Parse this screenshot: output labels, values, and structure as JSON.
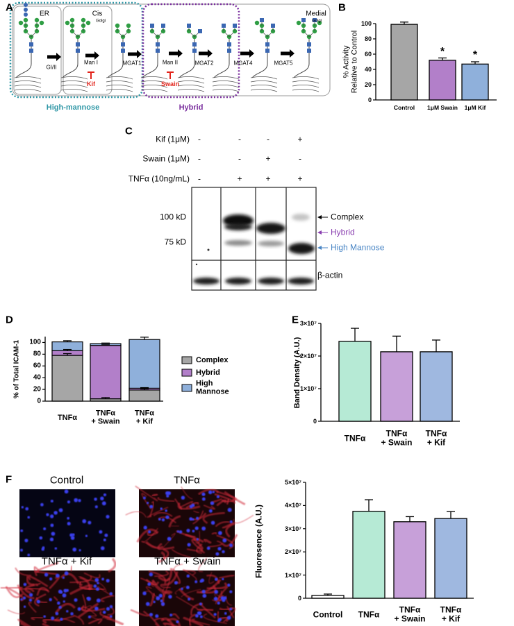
{
  "panel_labels": [
    "A",
    "B",
    "C",
    "D",
    "E",
    "F"
  ],
  "pathway": {
    "compartments": [
      "ER",
      "Cis",
      "Golgi",
      "Medial",
      "Golgi"
    ],
    "enzymes": [
      "GI/II",
      "Man I",
      "MGAT1",
      "Man II",
      "MGAT2",
      "MGAT4",
      "MGAT5"
    ],
    "inhibitors": [
      "Kif",
      "Swain"
    ],
    "groups": [
      "High-mannose",
      "Hybrid"
    ]
  },
  "blot": {
    "treatments": [
      {
        "label": "Kif (1μM)",
        "signs": [
          "-",
          "-",
          "-",
          "+"
        ]
      },
      {
        "label": "Swain (1μM)",
        "signs": [
          "-",
          "-",
          "+",
          "-"
        ]
      },
      {
        "label": "TNFα (10ng/mL)",
        "signs": [
          "-",
          "+",
          "+",
          "+"
        ]
      }
    ],
    "markers": [
      "100 kD",
      "75 kD"
    ],
    "bands": [
      "Complex",
      "Hybrid",
      "High Mannose"
    ],
    "loading_control": "β-actin"
  },
  "micrographs": [
    "Control",
    "TNFα",
    "TNFα + Kif",
    "TNFα + Swain"
  ],
  "chart_data": [
    {
      "type": "bar",
      "ylabel": "% Activity\nRelative to Control",
      "categories": [
        "Control",
        "1μM Swain",
        "1μM Kif"
      ],
      "values": [
        99,
        52,
        47
      ],
      "errors": [
        3,
        3,
        3
      ],
      "colors": [
        "#a6a6a6",
        "#b27fc9",
        "#8fb0db"
      ],
      "significance": [
        null,
        "*",
        "*"
      ],
      "ylim": [
        0,
        100
      ],
      "yticks": [
        0,
        20,
        40,
        60,
        80,
        100
      ]
    },
    {
      "type": "stacked_bar",
      "ylabel": "% of Total ICAM-1",
      "categories": [
        "TNFα",
        "TNFα\n+ Swain",
        "TNFα\n+ Kif"
      ],
      "series": [
        {
          "name": "Complex",
          "color": "#a6a6a6",
          "values": [
            78,
            4,
            19
          ],
          "errors": [
            3,
            2,
            2
          ]
        },
        {
          "name": "Hybrid",
          "color": "#b27fc9",
          "values": [
            8,
            91,
            3
          ],
          "errors": [
            2,
            1,
            1
          ]
        },
        {
          "name": "High\nMannose",
          "color": "#8fb0db",
          "values": [
            15,
            3,
            83
          ],
          "errors": [
            2,
            1,
            4
          ]
        }
      ],
      "ylim": [
        0,
        110
      ],
      "yticks": [
        0,
        20,
        40,
        60,
        80,
        100
      ],
      "legend": "right"
    },
    {
      "type": "bar",
      "ylabel": "Band Density (A.U.)",
      "categories": [
        "TNFα",
        "TNFα\n+ Swain",
        "TNFα\n+ Kif"
      ],
      "values": [
        24500000,
        21300000,
        21300000
      ],
      "errors": [
        4000000,
        4800000,
        3600000
      ],
      "colors": [
        "#b6ead5",
        "#c7a0d9",
        "#9fb8e0"
      ],
      "ylim": [
        0,
        30000000
      ],
      "yticks": [
        0,
        {
          "value": 10000000,
          "label": "1×10⁷"
        },
        {
          "value": 20000000,
          "label": "2×10⁷"
        },
        {
          "value": 30000000,
          "label": "3×10⁷"
        }
      ]
    },
    {
      "type": "bar",
      "ylabel": "Fluoresence (A.U.)",
      "categories": [
        "Control",
        "TNFα",
        "TNFα\n+ Swain",
        "TNFα\n+ Kif"
      ],
      "values": [
        1200000,
        37500000,
        33000000,
        34400000
      ],
      "errors": [
        600000,
        5000000,
        2200000,
        3000000
      ],
      "colors": [
        "#ffffff",
        "#b6ead5",
        "#c7a0d9",
        "#9fb8e0"
      ],
      "ylim": [
        0,
        50000000
      ],
      "yticks": [
        0,
        {
          "value": 10000000,
          "label": "1×10⁷"
        },
        {
          "value": 20000000,
          "label": "2×10⁷"
        },
        {
          "value": 30000000,
          "label": "3×10⁷"
        },
        {
          "value": 40000000,
          "label": "4×10⁷"
        },
        {
          "value": 50000000,
          "label": "5×10⁷"
        }
      ]
    }
  ]
}
